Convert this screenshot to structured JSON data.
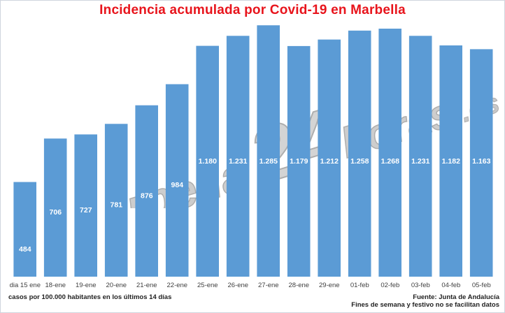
{
  "colors": {
    "bar": "#5b9bd5",
    "title": "#e8141c",
    "label": "#ffffff",
    "tick": "#404040"
  },
  "watermark": {
    "copyright": "©",
    "brand": "marbella",
    "num": "24",
    "rest": "horas",
    "tld": ".es"
  },
  "chart_data": {
    "type": "bar",
    "title": "Incidencia acumulada por Covid-19 en Marbella",
    "categories": [
      "dia 15 ene",
      "18-ene",
      "19-ene",
      "20-ene",
      "21-ene",
      "22-ene",
      "25-ene",
      "26-ene",
      "27-ene",
      "28-ene",
      "29-ene",
      "01-feb",
      "02-feb",
      "03-feb",
      "04-feb",
      "05-feb"
    ],
    "values": [
      484,
      706,
      727,
      781,
      876,
      984,
      1180,
      1231,
      1285,
      1179,
      1212,
      1258,
      1268,
      1231,
      1182,
      1163
    ],
    "data_labels": [
      "484",
      "706",
      "727",
      "781",
      "876",
      "984",
      "1.180",
      "1.231",
      "1.285",
      "1.179",
      "1.212",
      "1.258",
      "1.268",
      "1.231",
      "1.182",
      "1.163"
    ],
    "xlabel": "",
    "ylabel": "",
    "ylim": [
      0,
      1300
    ],
    "grid": false
  },
  "footer": {
    "note_left": "casos por 100.000 habitantes en los últimos 14 días",
    "source": "Fuente: Junta de Andalucía",
    "note_right": "Fines de semana y festivo no se facilitan datos"
  }
}
